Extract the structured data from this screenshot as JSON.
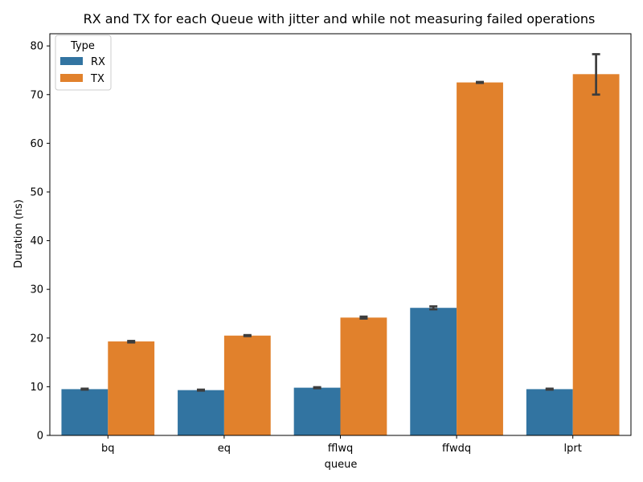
{
  "chart_data": {
    "type": "bar",
    "title": "RX and TX for each Queue with jitter and while not measuring failed operations",
    "xlabel": "queue",
    "ylabel": "Duration (ns)",
    "categories": [
      "bq",
      "eq",
      "fflwq",
      "ffwdq",
      "lprt"
    ],
    "ylim": [
      0,
      82.5
    ],
    "yticks": [
      0,
      10,
      20,
      30,
      40,
      50,
      60,
      70,
      80
    ],
    "grid": false,
    "legend": {
      "title": "Type",
      "placement": "top-left"
    },
    "series": [
      {
        "name": "RX",
        "color": "#3274a1",
        "values": [
          9.5,
          9.3,
          9.8,
          26.2,
          9.5
        ],
        "error_low": [
          9.4,
          9.2,
          9.7,
          25.9,
          9.4
        ],
        "error_high": [
          9.6,
          9.4,
          9.9,
          26.5,
          9.6
        ]
      },
      {
        "name": "TX",
        "color": "#e1812c",
        "values": [
          19.3,
          20.5,
          24.2,
          72.5,
          74.2
        ],
        "error_low": [
          19.1,
          20.4,
          24.0,
          72.4,
          70.0
        ],
        "error_high": [
          19.4,
          20.6,
          24.4,
          72.6,
          78.3
        ]
      }
    ],
    "errorbar_color": "#3d3d3d"
  }
}
